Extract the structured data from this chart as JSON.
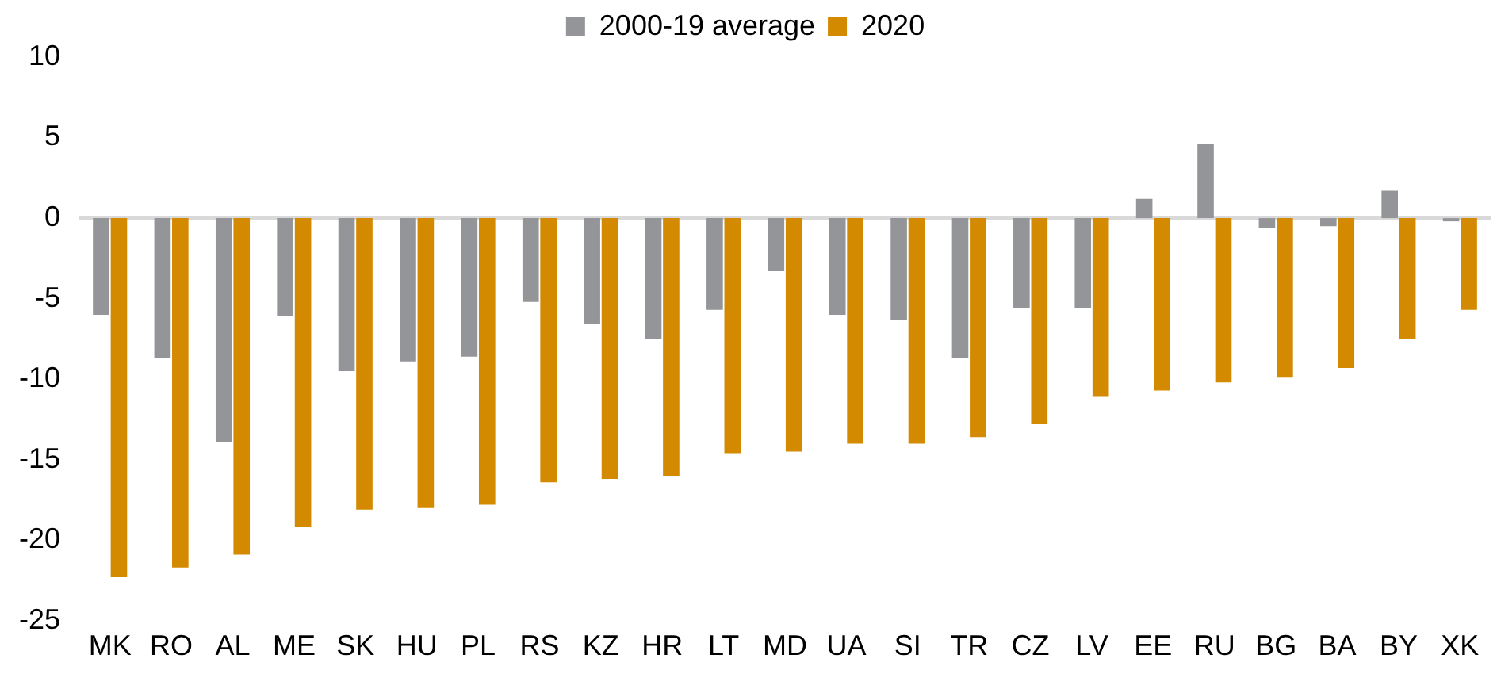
{
  "chart_data": {
    "type": "bar",
    "categories": [
      "MK",
      "RO",
      "AL",
      "ME",
      "SK",
      "HU",
      "PL",
      "RS",
      "KZ",
      "HR",
      "LT",
      "MD",
      "UA",
      "SI",
      "TR",
      "CZ",
      "LV",
      "EE",
      "RU",
      "BG",
      "BA",
      "BY",
      "XK"
    ],
    "series": [
      {
        "name": "2000-19 average",
        "color": "#939598",
        "values": [
          -6.0,
          -8.7,
          -13.9,
          -6.1,
          -9.5,
          -8.9,
          -8.6,
          -5.2,
          -6.6,
          -7.5,
          -5.7,
          -3.3,
          -6.0,
          -6.3,
          -8.7,
          -5.6,
          -5.6,
          1.2,
          4.6,
          -0.6,
          -0.5,
          1.7,
          -0.2
        ]
      },
      {
        "name": "2020",
        "color": "#d48a00",
        "values": [
          -22.3,
          -21.7,
          -20.9,
          -19.2,
          -18.1,
          -18.0,
          -17.8,
          -16.4,
          -16.2,
          -16.0,
          -14.6,
          -14.5,
          -14.0,
          -14.0,
          -13.6,
          -12.8,
          -11.1,
          -10.7,
          -10.2,
          -9.9,
          -9.3,
          -7.5,
          -5.7
        ]
      }
    ],
    "ylim": [
      -25,
      10
    ],
    "yticks": [
      -25,
      -20,
      -15,
      -10,
      -5,
      0,
      5,
      10
    ],
    "grid": false,
    "legend": "top",
    "ref_lines": [
      {
        "axis": "y",
        "value": 0,
        "color": "#d9d9d9"
      }
    ]
  }
}
